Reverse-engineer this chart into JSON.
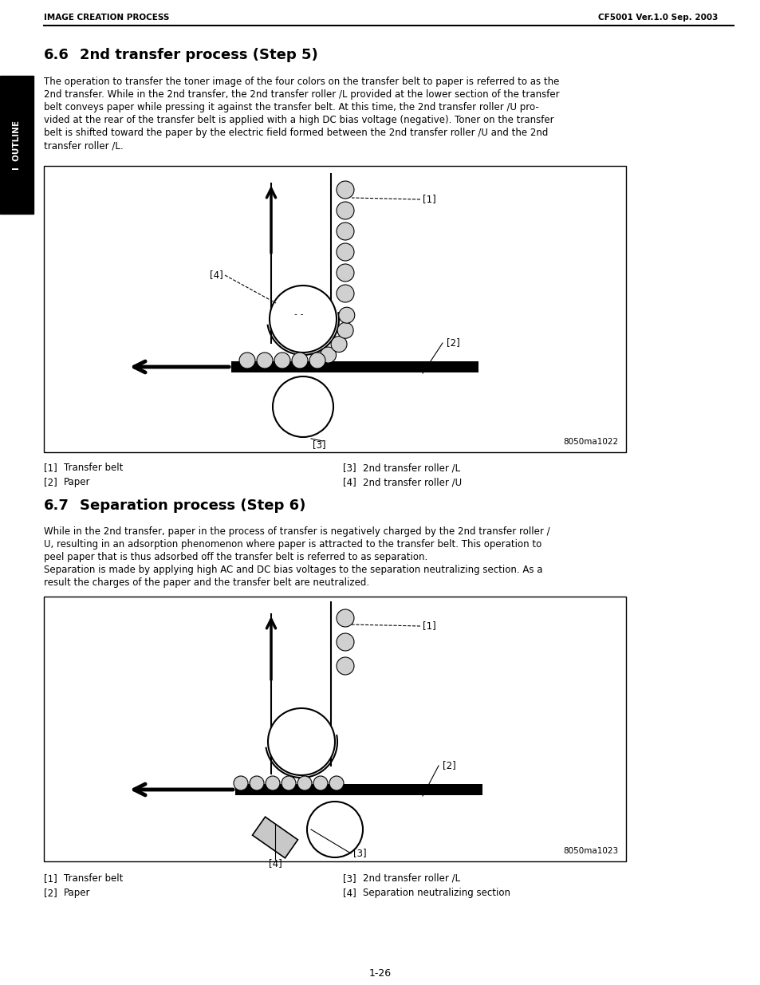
{
  "header_left": "IMAGE CREATION PROCESS",
  "header_right": "CF5001 Ver.1.0 Sep. 2003",
  "section1_num": "6.6",
  "section1_title": "2nd transfer process (Step 5)",
  "section1_body": [
    "The operation to transfer the toner image of the four colors on the transfer belt to paper is referred to as the",
    "2nd transfer. While in the 2nd transfer, the 2nd transfer roller /L provided at the lower section of the transfer",
    "belt conveys paper while pressing it against the transfer belt. At this time, the 2nd transfer roller /U pro-",
    "vided at the rear of the transfer belt is applied with a high DC bias voltage (negative). Toner on the transfer",
    "belt is shifted toward the paper by the electric field formed between the 2nd transfer roller /U and the 2nd",
    "transfer roller /L."
  ],
  "diagram1_caption": "8050ma1022",
  "diagram1_legend": [
    [
      "[1]",
      "Transfer belt",
      "[3]",
      "2nd transfer roller /L"
    ],
    [
      "[2]",
      "Paper",
      "[4]",
      "2nd transfer roller /U"
    ]
  ],
  "section2_num": "6.7",
  "section2_title": "Separation process (Step 6)",
  "section2_body": [
    "While in the 2nd transfer, paper in the process of transfer is negatively charged by the 2nd transfer roller /",
    "U, resulting in an adsorption phenomenon where paper is attracted to the transfer belt. This operation to",
    "peel paper that is thus adsorbed off the transfer belt is referred to as separation.",
    "Separation is made by applying high AC and DC bias voltages to the separation neutralizing section. As a",
    "result the charges of the paper and the transfer belt are neutralized."
  ],
  "diagram2_caption": "8050ma1023",
  "diagram2_legend": [
    [
      "[1]",
      "Transfer belt",
      "[3]",
      "2nd transfer roller /L"
    ],
    [
      "[2]",
      "Paper",
      "[4]",
      "Separation neutralizing section"
    ]
  ],
  "footer": "1-26",
  "sidebar_text": "I  OUTLINE",
  "bg_color": "#ffffff",
  "text_color": "#000000",
  "sidebar_bg": "#000000",
  "sidebar_text_color": "#ffffff"
}
